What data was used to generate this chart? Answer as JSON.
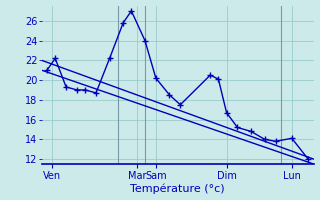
{
  "background_color": "#cceaea",
  "grid_color": "#99cccc",
  "line_color": "#0000bb",
  "vline_color": "#7799aa",
  "xlabel": "Température (°c)",
  "ylim": [
    11.5,
    27.5
  ],
  "xlim": [
    0,
    100
  ],
  "yticks": [
    12,
    14,
    16,
    18,
    20,
    22,
    24,
    26
  ],
  "xtick_positions": [
    4,
    35,
    42,
    68,
    92
  ],
  "xtick_labels": [
    "Ven",
    "Mar",
    "Sam",
    "Dim",
    "Lun"
  ],
  "vline_positions": [
    28,
    38,
    88
  ],
  "main_line_x": [
    2,
    5,
    9,
    13,
    16,
    20,
    25,
    30,
    33,
    38,
    42,
    47,
    51,
    62,
    65,
    68,
    72,
    77,
    82,
    86,
    92,
    98
  ],
  "main_line_y": [
    21,
    22.2,
    19.3,
    19,
    19,
    18.7,
    22.2,
    25.8,
    27.0,
    24.0,
    20.2,
    18.5,
    17.5,
    20.5,
    20.1,
    16.7,
    15.2,
    14.8,
    14.0,
    13.8,
    14.1,
    12.0
  ],
  "upper_line_x": [
    0,
    100
  ],
  "upper_line_y": [
    22.0,
    12.0
  ],
  "lower_line_x": [
    0,
    100
  ],
  "lower_line_y": [
    21.0,
    11.5
  ],
  "marker_style": "+",
  "marker_size": 5,
  "line_width": 1.0,
  "font_size_ticks": 7,
  "font_size_xlabel": 8
}
